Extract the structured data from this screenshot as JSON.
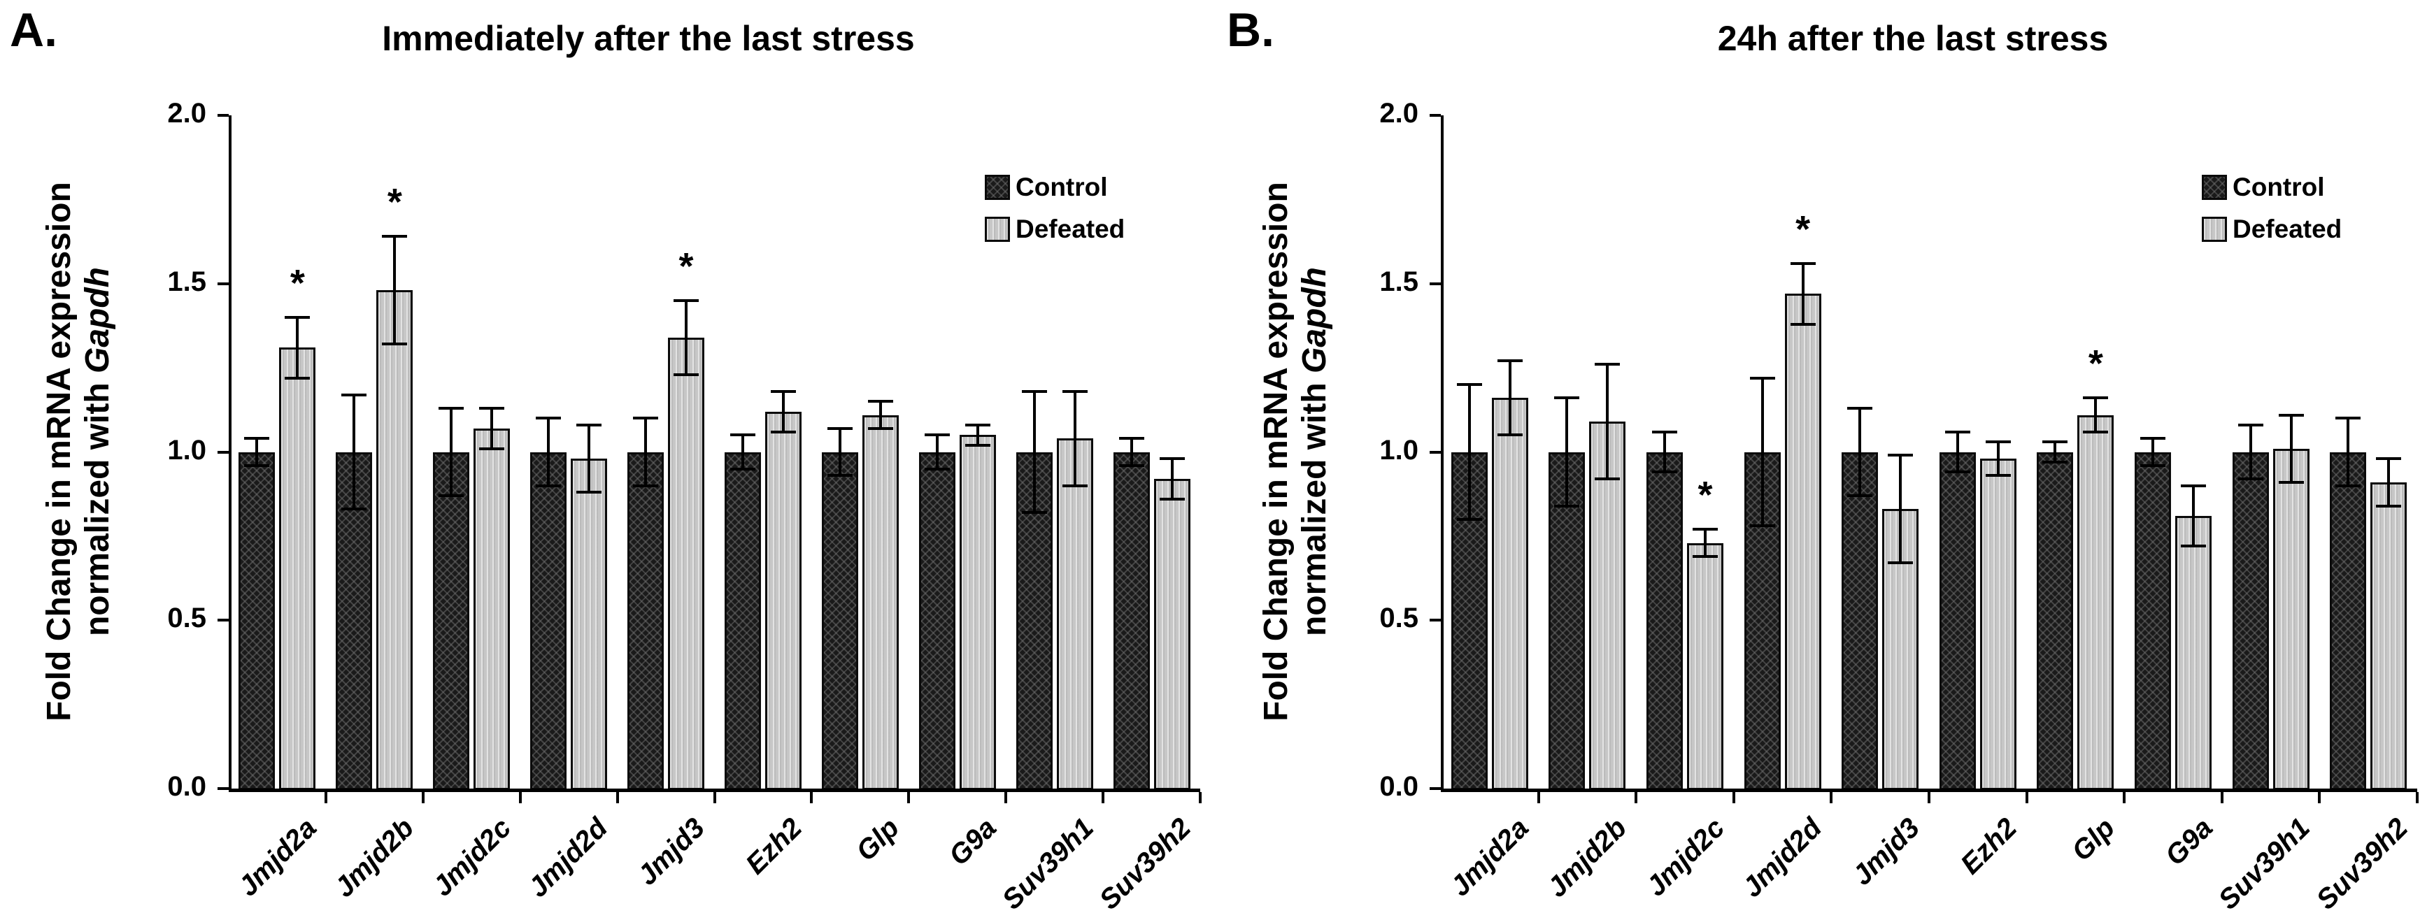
{
  "figure": {
    "background": "#ffffff"
  },
  "colors": {
    "control_fill": "#1a1a1a",
    "defeated_fill": "#c7c7c7",
    "axis": "#000000",
    "error_bar": "#000000",
    "text": "#000000"
  },
  "sig_marker": "*",
  "chart_data": [
    {
      "type": "bar",
      "panel_letter": "A.",
      "title": "Immediately after the last stress",
      "ylabel_line1": "Fold Change in mRNA expression",
      "ylabel_line2_prefix": "normalized with ",
      "ylabel_italic": "Gapdh",
      "ylim": [
        0,
        2
      ],
      "yticks": [
        0,
        0.5,
        1,
        1.5,
        2
      ],
      "grid": false,
      "legend_position": "upper-right",
      "legend": [
        "Control",
        "Defeated"
      ],
      "categories": [
        "Jmjd2a",
        "Jmjd2b",
        "Jmjd2c",
        "Jmjd2d",
        "Jmjd3",
        "Ezh2",
        "Glp",
        "G9a",
        "Suv39h1",
        "Suv39h2"
      ],
      "series": [
        {
          "name": "Control",
          "values": [
            1.0,
            1.0,
            1.0,
            1.0,
            1.0,
            1.0,
            1.0,
            1.0,
            1.0,
            1.0
          ],
          "errors": [
            0.04,
            0.17,
            0.13,
            0.1,
            0.1,
            0.05,
            0.07,
            0.05,
            0.18,
            0.04
          ]
        },
        {
          "name": "Defeated",
          "values": [
            1.31,
            1.48,
            1.07,
            0.98,
            1.34,
            1.12,
            1.11,
            1.05,
            1.04,
            0.92
          ],
          "errors": [
            0.09,
            0.16,
            0.06,
            0.1,
            0.11,
            0.06,
            0.04,
            0.03,
            0.14,
            0.06
          ]
        }
      ],
      "significant_defeated": [
        "Jmjd2a",
        "Jmjd2b",
        "Jmjd3"
      ]
    },
    {
      "type": "bar",
      "panel_letter": "B.",
      "title": "24h after the last stress",
      "ylabel_line1": "Fold Change in mRNA expression",
      "ylabel_line2_prefix": "normalized with ",
      "ylabel_italic": "Gapdh",
      "ylim": [
        0,
        2
      ],
      "yticks": [
        0,
        0.5,
        1,
        1.5,
        2
      ],
      "grid": false,
      "legend_position": "upper-right",
      "legend": [
        "Control",
        "Defeated"
      ],
      "categories": [
        "Jmjd2a",
        "Jmjd2b",
        "Jmjd2c",
        "Jmjd2d",
        "Jmjd3",
        "Ezh2",
        "Glp",
        "G9a",
        "Suv39h1",
        "Suv39h2"
      ],
      "series": [
        {
          "name": "Control",
          "values": [
            1.0,
            1.0,
            1.0,
            1.0,
            1.0,
            1.0,
            1.0,
            1.0,
            1.0,
            1.0
          ],
          "errors": [
            0.2,
            0.16,
            0.06,
            0.22,
            0.13,
            0.06,
            0.03,
            0.04,
            0.08,
            0.1
          ]
        },
        {
          "name": "Defeated",
          "values": [
            1.16,
            1.09,
            0.73,
            1.47,
            0.83,
            0.98,
            1.11,
            0.81,
            1.01,
            0.91
          ],
          "errors": [
            0.11,
            0.17,
            0.04,
            0.09,
            0.16,
            0.05,
            0.05,
            0.09,
            0.1,
            0.07
          ]
        }
      ],
      "significant_defeated": [
        "Jmjd2c",
        "Jmjd2d",
        "Glp"
      ]
    }
  ]
}
